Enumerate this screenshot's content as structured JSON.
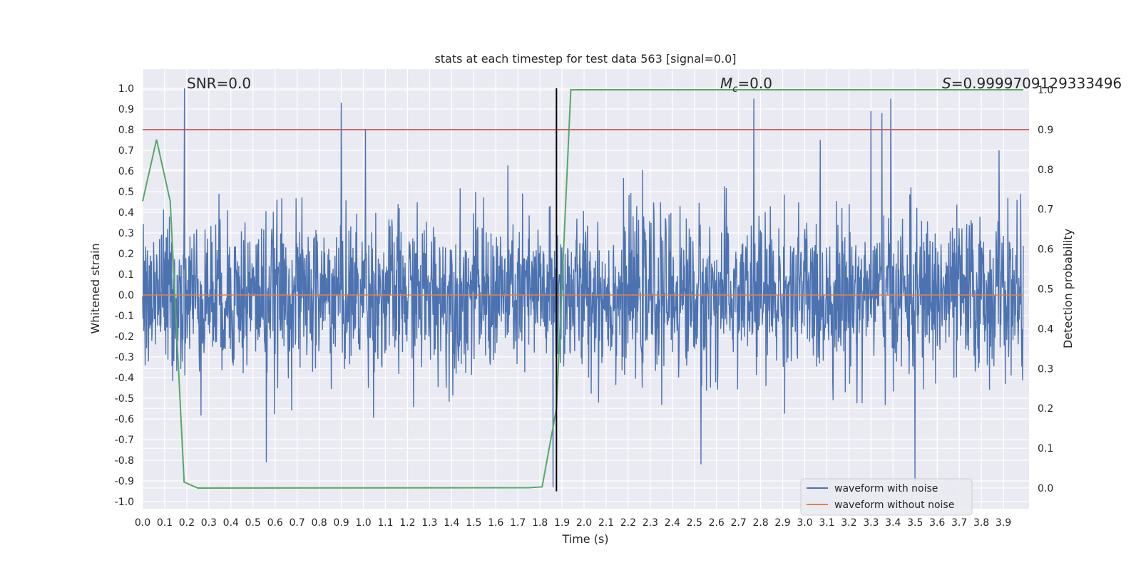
{
  "chart_data": {
    "type": "line",
    "title": "stats at each timestep for test data 563 [signal=0.0]",
    "xlabel": "Time (s)",
    "ylabel": "Whitened strain",
    "y2label": "Detection probability",
    "xlim": [
      0.0,
      3.99
    ],
    "ylim": [
      -1.05,
      1.1
    ],
    "y2lim": [
      -0.05,
      1.0
    ],
    "x_ticks": [
      "0.0",
      "0.1",
      "0.2",
      "0.3",
      "0.4",
      "0.5",
      "0.6",
      "0.7",
      "0.8",
      "0.9",
      "1.0",
      "1.1",
      "1.2",
      "1.3",
      "1.4",
      "1.5",
      "1.6",
      "1.7",
      "1.8",
      "1.9",
      "2.0",
      "2.1",
      "2.2",
      "2.3",
      "2.4",
      "2.5",
      "2.6",
      "2.7",
      "2.8",
      "2.9",
      "3.0",
      "3.1",
      "3.2",
      "3.3",
      "3.4",
      "3.5",
      "3.6",
      "3.7",
      "3.8",
      "3.9"
    ],
    "y_ticks": [
      "1.0",
      "0.9",
      "0.8",
      "0.7",
      "0.6",
      "0.5",
      "0.4",
      "0.3",
      "0.2",
      "0.1",
      "0.0",
      "-0.1",
      "-0.2",
      "-0.3",
      "-0.4",
      "-0.5",
      "-0.6",
      "-0.7",
      "-0.8",
      "-0.9",
      "-1.0"
    ],
    "y2_ticks": [
      "1.0",
      "0.9",
      "0.8",
      "0.7",
      "0.6",
      "0.5",
      "0.4",
      "0.3",
      "0.2",
      "0.1",
      "0.0"
    ],
    "grid": true,
    "legend_position": "bottom-right",
    "annotations": {
      "snr": "SNR=0.0",
      "mc_symbol": "M",
      "mc_sub": "c",
      "mc_value": "=0.0",
      "s_symbol": "S",
      "s_value": "=0.9999709129333496"
    },
    "series": [
      {
        "name": "waveform with noise",
        "color": "#4c72b0",
        "axis": "left",
        "description_values": "dense noise, mostly within [-0.6, 0.6]",
        "peaks": [
          {
            "x": 0.19,
            "y": 1.0
          },
          {
            "x": 0.9,
            "y": 0.93
          },
          {
            "x": 1.01,
            "y": 0.8
          },
          {
            "x": 2.77,
            "y": 0.95
          },
          {
            "x": 3.39,
            "y": 0.95
          },
          {
            "x": 3.3,
            "y": 0.89
          },
          {
            "x": 3.35,
            "y": 0.88
          },
          {
            "x": 3.88,
            "y": 0.7
          },
          {
            "x": 3.5,
            "y": -0.9
          },
          {
            "x": 1.86,
            "y": -0.93
          },
          {
            "x": 2.53,
            "y": -0.82
          },
          {
            "x": 0.56,
            "y": -0.81
          }
        ]
      },
      {
        "name": "waveform without noise",
        "color": "#dd8452",
        "axis": "left",
        "x": [
          0.0,
          3.99
        ],
        "y": [
          0.0,
          0.0
        ]
      },
      {
        "name": "",
        "color": "#55a868",
        "axis": "right",
        "x": [
          0.0,
          0.063,
          0.125,
          0.188,
          0.25,
          1.75,
          1.81,
          1.875,
          1.94,
          2.0,
          3.99
        ],
        "y": [
          0.72,
          0.875,
          0.72,
          0.015,
          0.0,
          0.001,
          0.003,
          0.2,
          1.0,
          1.0,
          1.0
        ]
      }
    ],
    "threshold": {
      "axis": "right",
      "y": 0.9,
      "color": "#c44e52"
    },
    "vertical_line": {
      "x": 1.875,
      "y_from": -0.95,
      "y_to": 1.0,
      "color": "#000000"
    }
  }
}
